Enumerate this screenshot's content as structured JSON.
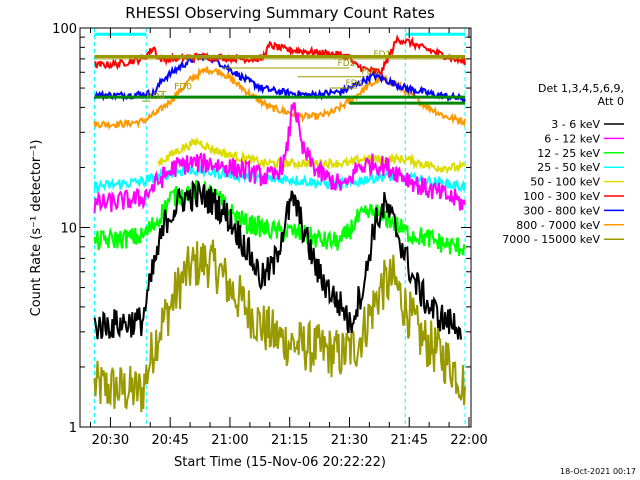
{
  "chart_data": {
    "type": "line",
    "title": "RHESSI Observing Summary Count Rates",
    "xlabel": "Start Time (15-Nov-06 20:22:22)",
    "ylabel": "Count Rate (s⁻¹ detector⁻¹)",
    "y_scale": "log",
    "ylim": [
      1,
      100
    ],
    "xlim": [
      "20:22:22",
      "22:00:30"
    ],
    "grid": false,
    "legend_position": "right",
    "x_ticks": [
      "20:30",
      "20:45",
      "21:00",
      "21:15",
      "21:30",
      "21:45",
      "22:00"
    ],
    "y_ticks": [
      "1",
      "10",
      "100"
    ],
    "legend_header": [
      "Det 1,3,4,5,6,9,",
      "Att 0"
    ],
    "footer_date": "18-Oct-2021 00:17",
    "series": [
      {
        "name": "3 - 6 keV",
        "color": "#000000",
        "x": [
          "20:26",
          "20:38",
          "20:41",
          "20:44",
          "20:48",
          "20:52",
          "20:56",
          "21:00",
          "21:04",
          "21:08",
          "21:11",
          "21:14",
          "21:16",
          "21:19",
          "21:22",
          "21:26",
          "21:29",
          "21:30",
          "21:34",
          "21:36",
          "21:39",
          "21:42",
          "21:46",
          "21:50",
          "21:54",
          "21:58"
        ],
        "y": [
          3.2,
          3.4,
          6.5,
          11,
          14,
          14.5,
          13.5,
          11,
          8,
          5.5,
          6.5,
          11,
          14,
          9,
          6,
          4.5,
          3.8,
          3.2,
          5.5,
          10,
          13,
          9.5,
          5.5,
          4,
          3.4,
          3.2
        ]
      },
      {
        "name": "6 - 12 keV",
        "color": "#ff00ff",
        "x": [
          "20:26",
          "20:38",
          "20:42",
          "20:46",
          "20:50",
          "20:55",
          "21:00",
          "21:05",
          "21:08",
          "21:11",
          "21:14",
          "21:16",
          "21:18",
          "21:22",
          "21:26",
          "21:29",
          "21:32",
          "21:36",
          "21:40",
          "21:44",
          "21:48",
          "21:52",
          "21:56",
          "21:59"
        ],
        "y": [
          13,
          14,
          17,
          20,
          21,
          21,
          20,
          19,
          18,
          18,
          22,
          45,
          25,
          19,
          17,
          16,
          20,
          21,
          20,
          18,
          16,
          15,
          14,
          13
        ]
      },
      {
        "name": "12 - 25 keV",
        "color": "#00ff00",
        "x": [
          "20:26",
          "20:38",
          "20:42",
          "20:45",
          "20:49",
          "20:53",
          "20:57",
          "21:00",
          "21:04",
          "21:08",
          "21:12",
          "21:16",
          "21:20",
          "21:24",
          "21:28",
          "21:32",
          "21:36",
          "21:40",
          "21:44",
          "21:48",
          "21:52",
          "21:56",
          "21:59"
        ],
        "y": [
          8.5,
          9,
          11,
          14,
          15,
          15.5,
          14,
          12,
          10.5,
          10,
          9.5,
          9.5,
          9,
          8.5,
          8.5,
          11,
          12,
          11,
          9.5,
          9,
          8.5,
          8,
          8
        ]
      },
      {
        "name": "25 - 50 keV",
        "color": "#00ffff",
        "x": [
          "20:26",
          "20:38",
          "20:42",
          "20:46",
          "20:50",
          "20:55",
          "21:00",
          "21:05",
          "21:10",
          "21:15",
          "21:20",
          "21:25",
          "21:30",
          "21:34",
          "21:38",
          "21:42",
          "21:46",
          "21:50",
          "21:55",
          "21:59"
        ],
        "y": [
          16,
          17,
          18,
          19,
          19.5,
          19,
          18.5,
          18,
          17.5,
          17.5,
          17,
          16.5,
          16.5,
          17.5,
          18,
          18,
          17.5,
          17,
          16.5,
          16
        ]
      },
      {
        "name": "50 - 100 keV",
        "color": "#dddd00",
        "x": [
          "20:42",
          "20:45",
          "20:48",
          "20:52",
          "20:55",
          "21:00",
          "21:05",
          "21:08",
          "21:12",
          "21:15",
          "21:18",
          "21:22",
          "21:26",
          "21:30",
          "21:33",
          "21:36",
          "21:40",
          "21:44",
          "21:48",
          "21:52",
          "21:56",
          "21:59"
        ],
        "y": [
          21,
          23,
          25,
          27,
          25,
          23,
          22,
          21,
          21,
          21,
          21,
          21,
          21,
          21,
          22,
          22,
          22,
          22,
          21,
          20,
          20,
          20
        ]
      },
      {
        "name": "100 - 300 keV",
        "color": "#ff0000",
        "x": [
          "20:26",
          "20:32",
          "20:38",
          "20:41",
          "20:42",
          "20:46",
          "20:52",
          "20:58",
          "21:04",
          "21:08",
          "21:10",
          "21:14",
          "21:20",
          "21:26",
          "21:30",
          "21:31",
          "21:34",
          "21:38",
          "21:42",
          "21:45",
          "21:48",
          "21:52",
          "21:56",
          "21:59"
        ],
        "y": [
          65,
          66,
          70,
          80,
          70,
          70,
          72,
          71,
          70,
          70,
          82,
          78,
          76,
          74,
          72,
          66,
          62,
          60,
          88,
          85,
          80,
          75,
          70,
          68
        ]
      },
      {
        "name": "300 - 800 keV",
        "color": "#0000ff",
        "x": [
          "20:26",
          "20:34",
          "20:41",
          "20:43",
          "20:48",
          "20:52",
          "20:56",
          "21:00",
          "21:04",
          "21:08",
          "21:12",
          "21:16",
          "21:20",
          "21:24",
          "21:28",
          "21:32",
          "21:36",
          "21:39",
          "21:44",
          "21:48",
          "21:52",
          "21:56",
          "21:59"
        ],
        "y": [
          46,
          46,
          47,
          55,
          65,
          72,
          70,
          62,
          55,
          50,
          48,
          47,
          46,
          47,
          48,
          52,
          58,
          55,
          50,
          48,
          46,
          45,
          44
        ]
      },
      {
        "name": "800 - 7000 keV",
        "color": "#ff9900",
        "x": [
          "20:26",
          "20:33",
          "20:38",
          "20:42",
          "20:46",
          "20:50",
          "20:54",
          "20:58",
          "21:02",
          "21:06",
          "21:10",
          "21:14",
          "21:18",
          "21:22",
          "21:26",
          "21:30",
          "21:34",
          "21:38",
          "21:42",
          "21:46",
          "21:50",
          "21:54",
          "21:59"
        ],
        "y": [
          33,
          33,
          34,
          38,
          45,
          55,
          62,
          60,
          52,
          45,
          40,
          38,
          36,
          36,
          38,
          43,
          50,
          56,
          52,
          45,
          40,
          36,
          34
        ]
      },
      {
        "name": "7000 - 15000 keV",
        "color": "#999900",
        "x": [
          "20:26",
          "20:38",
          "20:40",
          "20:42",
          "20:45",
          "20:48",
          "20:51",
          "20:54",
          "20:57",
          "21:00",
          "21:04",
          "21:08",
          "21:12",
          "21:16",
          "21:20",
          "21:24",
          "21:28",
          "21:32",
          "21:35",
          "21:38",
          "21:41",
          "21:44",
          "21:48",
          "21:52",
          "21:56",
          "21:59"
        ],
        "y": [
          1.6,
          1.5,
          2.2,
          3.0,
          4.0,
          5.5,
          6.5,
          6.8,
          6.2,
          5.0,
          4.0,
          3.2,
          2.8,
          2.6,
          2.5,
          2.4,
          2.3,
          2.6,
          3.6,
          5.0,
          5.5,
          4.0,
          2.8,
          2.4,
          2.0,
          1.6
        ]
      }
    ],
    "reference_lines": [
      {
        "label": "FD1",
        "value": 70,
        "color": "#999900",
        "start": "20:26",
        "end": "22:00",
        "label_at": "21:36"
      },
      {
        "label": "FD2",
        "value": 63,
        "color": "#999900",
        "start": "20:58",
        "end": "21:30",
        "label_at": "21:27"
      },
      {
        "label": "FD3",
        "value": 57,
        "color": "#999900",
        "start": "21:17",
        "end": "21:34",
        "label_at": "21:33"
      },
      {
        "label": "FD4",
        "value": 50,
        "color": "#999900",
        "start": "21:25",
        "end": "21:32",
        "label_at": "21:29"
      },
      {
        "label": "FD0",
        "value": 48,
        "color": "#999900",
        "start": "20:42",
        "end": "20:44",
        "label_at": "20:46"
      },
      {
        "label": "RD4",
        "value": 43,
        "color": "#999900",
        "start": "20:38",
        "end": "20:40",
        "label_at": "20:39"
      }
    ],
    "horizontal_bars": [
      {
        "value": 72,
        "color": "#999900",
        "start": "20:26",
        "end": "21:59"
      },
      {
        "value": 45,
        "color": "#008800",
        "start": "20:26",
        "end": "21:59"
      },
      {
        "value": 42,
        "color": "#008800",
        "start": "21:30",
        "end": "21:59"
      }
    ],
    "cyan_segments": [
      {
        "value": 93,
        "start": "20:26",
        "end": "20:39"
      },
      {
        "value": 93,
        "start": "21:44",
        "end": "21:59"
      }
    ],
    "night_boundaries": [
      "20:26",
      "20:39",
      "21:44",
      "21:59"
    ]
  }
}
